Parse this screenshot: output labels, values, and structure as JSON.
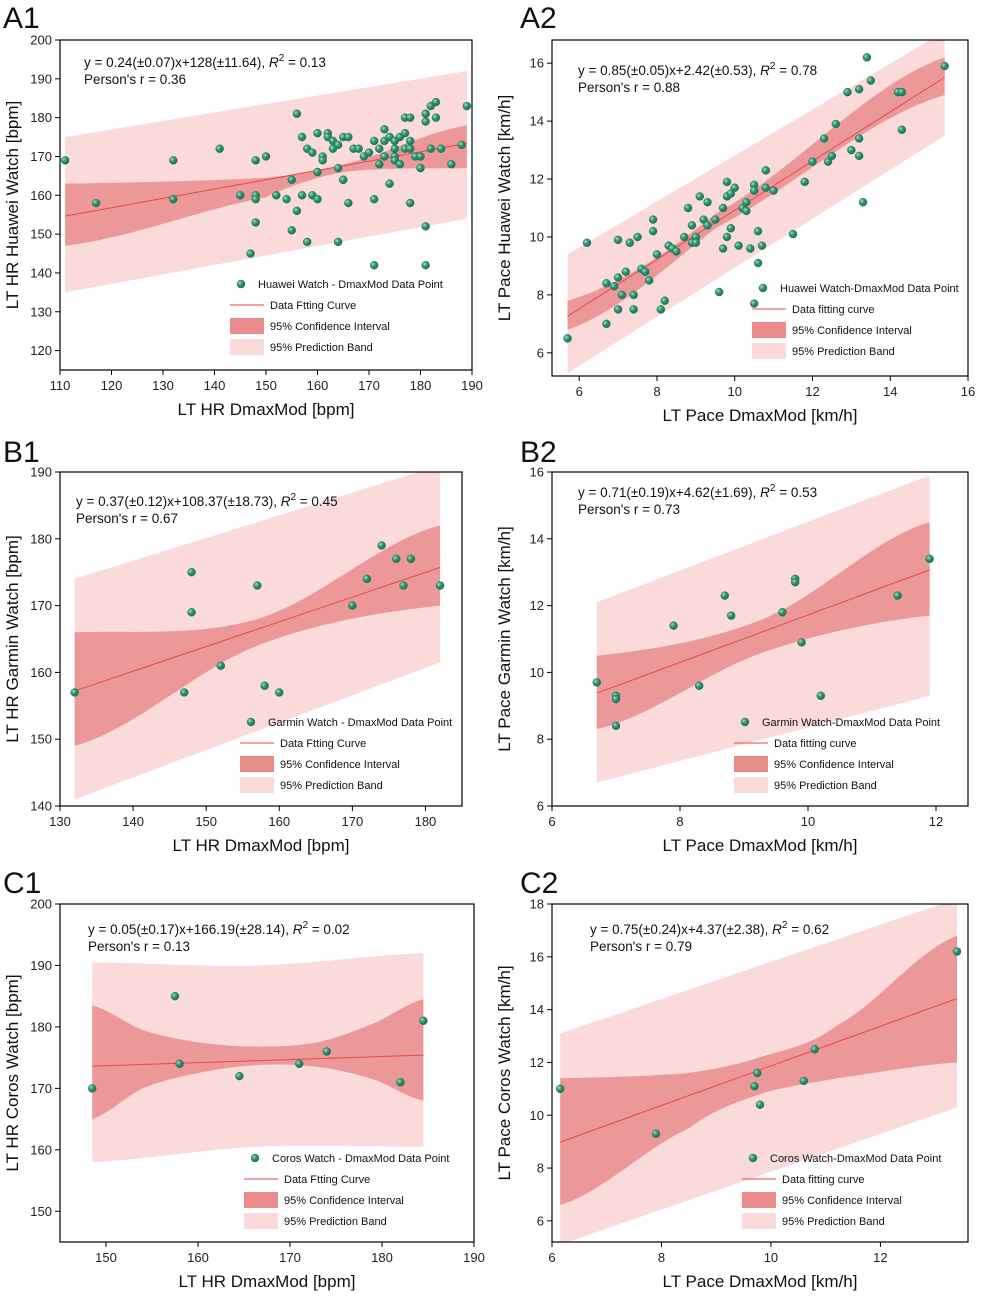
{
  "colors": {
    "point_fill": "#2e9470",
    "point_stroke": "#1d6e52",
    "fit_line": "#e8474a",
    "confidence": "#ea8c8c",
    "prediction": "#fbdada",
    "axis": "#000000"
  },
  "chart_data": [
    {
      "id": "A1",
      "type": "scatter",
      "panel_label": "A1",
      "xlabel": "LT HR DmaxMod [bpm]",
      "ylabel": "LT HR Huawei Watch [bpm]",
      "xlim": [
        110,
        190
      ],
      "ylim": [
        115,
        200
      ],
      "xticks": [
        110,
        120,
        130,
        140,
        150,
        160,
        170,
        180,
        190
      ],
      "yticks": [
        120,
        130,
        140,
        150,
        160,
        170,
        180,
        190,
        200
      ],
      "equation": "y = 0.24(±0.07)x+128(±11.64),",
      "r2": "= 0.13",
      "pearson": "Person's r = 0.36",
      "fit": {
        "slope": 0.24,
        "intercept": 128,
        "x_range": [
          111,
          189
        ]
      },
      "ci": {
        "x": [
          111,
          150,
          165,
          189
        ],
        "lower": [
          147,
          159.5,
          166,
          167
        ],
        "upper": [
          163,
          164.5,
          168,
          178
        ]
      },
      "pi": {
        "x": [
          111,
          189
        ],
        "lower": [
          135,
          154
        ],
        "upper": [
          175,
          192
        ]
      },
      "legend": {
        "points": "Huawei Watch - DmaxMod Data Point",
        "fit": "Data Ftting Curve",
        "ci": "95% Confidence Interval",
        "pi": "95% Prediction Band"
      },
      "points": [
        [
          111,
          169
        ],
        [
          117,
          158
        ],
        [
          132,
          169
        ],
        [
          132,
          159
        ],
        [
          141,
          172
        ],
        [
          145,
          160
        ],
        [
          147,
          145
        ],
        [
          148,
          160
        ],
        [
          148,
          159
        ],
        [
          148,
          153
        ],
        [
          148,
          169
        ],
        [
          150,
          170
        ],
        [
          152,
          160
        ],
        [
          154,
          159
        ],
        [
          155,
          164
        ],
        [
          155,
          151
        ],
        [
          156,
          156
        ],
        [
          156,
          181
        ],
        [
          157,
          160
        ],
        [
          157,
          175
        ],
        [
          158,
          172
        ],
        [
          158,
          148
        ],
        [
          159,
          171
        ],
        [
          159,
          160
        ],
        [
          160,
          176
        ],
        [
          160,
          166
        ],
        [
          160,
          159
        ],
        [
          161,
          170
        ],
        [
          161,
          169
        ],
        [
          162,
          176
        ],
        [
          162,
          175
        ],
        [
          163,
          174
        ],
        [
          163,
          172
        ],
        [
          164,
          148
        ],
        [
          164,
          167
        ],
        [
          164,
          173
        ],
        [
          165,
          164
        ],
        [
          165,
          175
        ],
        [
          165,
          164
        ],
        [
          166,
          158
        ],
        [
          166,
          175
        ],
        [
          167,
          172
        ],
        [
          168,
          172
        ],
        [
          169,
          170
        ],
        [
          170,
          171
        ],
        [
          171,
          159
        ],
        [
          171,
          174
        ],
        [
          171,
          142
        ],
        [
          172,
          168
        ],
        [
          172,
          172
        ],
        [
          173,
          170
        ],
        [
          173,
          177
        ],
        [
          173,
          174
        ],
        [
          174,
          175
        ],
        [
          174,
          163
        ],
        [
          174,
          175
        ],
        [
          175,
          174
        ],
        [
          175,
          170
        ],
        [
          175,
          169
        ],
        [
          175,
          172
        ],
        [
          176,
          175
        ],
        [
          176,
          168
        ],
        [
          177,
          180
        ],
        [
          177,
          176
        ],
        [
          177,
          172
        ],
        [
          178,
          172
        ],
        [
          178,
          174
        ],
        [
          178,
          180
        ],
        [
          178,
          158
        ],
        [
          179,
          170
        ],
        [
          180,
          170
        ],
        [
          180,
          167
        ],
        [
          181,
          181
        ],
        [
          181,
          179
        ],
        [
          181,
          152
        ],
        [
          181,
          142
        ],
        [
          182,
          172
        ],
        [
          182,
          183
        ],
        [
          183,
          180
        ],
        [
          183,
          184
        ],
        [
          184,
          172
        ],
        [
          186,
          168
        ],
        [
          188,
          173
        ],
        [
          189,
          183
        ]
      ]
    },
    {
      "id": "A2",
      "type": "scatter",
      "panel_label": "A2",
      "xlabel": "LT Pace DmaxMod [km/h]",
      "ylabel": "LT Pace Huawei Watch [km/h]",
      "xlim": [
        5.3,
        16
      ],
      "ylim": [
        5.2,
        16.8
      ],
      "xticks": [
        6,
        8,
        10,
        12,
        14,
        16
      ],
      "yticks": [
        6,
        8,
        10,
        12,
        14,
        16
      ],
      "equation": "y = 0.85(±0.05)x+2.42(±0.53),",
      "r2": "= 0.78",
      "pearson": "Person's r = 0.88",
      "fit": {
        "slope": 0.85,
        "intercept": 2.42,
        "x_range": [
          5.7,
          15.4
        ]
      },
      "ci": {
        "x": [
          5.7,
          9.5,
          15.4
        ],
        "lower": [
          6.8,
          10.3,
          14.9
        ],
        "upper": [
          7.8,
          10.8,
          16.2
        ]
      },
      "pi": {
        "x": [
          5.7,
          15.4
        ],
        "lower": [
          5.3,
          13.5
        ],
        "upper": [
          9.4,
          17.1
        ]
      },
      "legend": {
        "points": "Huawei Watch-DmaxMod Data Point",
        "fit": "Data fitting curve",
        "ci": "95% Confidence Interval",
        "pi": "95% Prediction Band"
      },
      "points": [
        [
          5.7,
          6.5
        ],
        [
          6.2,
          9.8
        ],
        [
          6.7,
          7.0
        ],
        [
          6.7,
          8.4
        ],
        [
          6.9,
          8.3
        ],
        [
          7.0,
          8.6
        ],
        [
          7.0,
          9.9
        ],
        [
          7.0,
          7.5
        ],
        [
          7.1,
          8.0
        ],
        [
          7.2,
          8.8
        ],
        [
          7.3,
          9.8
        ],
        [
          7.4,
          7.5
        ],
        [
          7.4,
          8.0
        ],
        [
          7.5,
          10.0
        ],
        [
          7.6,
          8.9
        ],
        [
          7.7,
          8.8
        ],
        [
          7.8,
          8.5
        ],
        [
          7.9,
          10.6
        ],
        [
          7.9,
          10.2
        ],
        [
          8.0,
          9.4
        ],
        [
          8.1,
          7.5
        ],
        [
          8.2,
          7.8
        ],
        [
          8.3,
          9.7
        ],
        [
          8.4,
          9.6
        ],
        [
          8.5,
          9.5
        ],
        [
          8.7,
          10.0
        ],
        [
          8.8,
          11.0
        ],
        [
          8.9,
          9.8
        ],
        [
          8.9,
          10.4
        ],
        [
          9.0,
          10.0
        ],
        [
          9.0,
          9.8
        ],
        [
          9.1,
          11.4
        ],
        [
          9.2,
          10.6
        ],
        [
          9.3,
          10.4
        ],
        [
          9.3,
          11.2
        ],
        [
          9.5,
          10.6
        ],
        [
          9.6,
          8.1
        ],
        [
          9.7,
          11.0
        ],
        [
          9.7,
          9.6
        ],
        [
          9.8,
          11.9
        ],
        [
          9.8,
          11.4
        ],
        [
          9.8,
          10.0
        ],
        [
          9.9,
          11.5
        ],
        [
          9.9,
          10.3
        ],
        [
          10.0,
          11.7
        ],
        [
          10.1,
          9.7
        ],
        [
          10.2,
          11.0
        ],
        [
          10.3,
          11.2
        ],
        [
          10.3,
          10.9
        ],
        [
          10.4,
          9.6
        ],
        [
          10.5,
          7.7
        ],
        [
          10.5,
          11.8
        ],
        [
          10.5,
          11.6
        ],
        [
          10.6,
          9.1
        ],
        [
          10.6,
          10.2
        ],
        [
          10.7,
          9.7
        ],
        [
          10.8,
          12.3
        ],
        [
          10.8,
          11.7
        ],
        [
          11.0,
          11.6
        ],
        [
          11.5,
          10.1
        ],
        [
          11.8,
          11.9
        ],
        [
          12.0,
          12.6
        ],
        [
          12.3,
          13.4
        ],
        [
          12.4,
          12.6
        ],
        [
          12.5,
          12.8
        ],
        [
          12.6,
          13.9
        ],
        [
          12.9,
          15.0
        ],
        [
          13.0,
          13.0
        ],
        [
          13.2,
          15.1
        ],
        [
          13.2,
          13.4
        ],
        [
          13.2,
          12.8
        ],
        [
          13.3,
          11.2
        ],
        [
          13.4,
          16.2
        ],
        [
          13.5,
          15.4
        ],
        [
          14.2,
          15.0
        ],
        [
          14.3,
          15.0
        ],
        [
          14.3,
          13.7
        ],
        [
          15.4,
          15.9
        ]
      ]
    },
    {
      "id": "B1",
      "type": "scatter",
      "panel_label": "B1",
      "xlabel": "LT HR DmaxMod [bpm]",
      "ylabel": "LT HR Garmin Watch [bpm]",
      "xlim": [
        130,
        185
      ],
      "ylim": [
        140,
        190
      ],
      "xticks": [
        130,
        140,
        150,
        160,
        170,
        180
      ],
      "yticks": [
        140,
        150,
        160,
        170,
        180,
        190
      ],
      "equation": "y = 0.37(±0.12)x+108.37(±18.73),",
      "r2": "= 0.45",
      "pearson": "Person's r = 0.67",
      "fit": {
        "slope": 0.37,
        "intercept": 108.37,
        "x_range": [
          132,
          182
        ]
      },
      "ci": {
        "x": [
          132,
          157,
          182
        ],
        "lower": [
          149,
          164,
          170
        ],
        "upper": [
          166,
          168,
          182
        ]
      },
      "pi": {
        "x": [
          132,
          182
        ],
        "lower": [
          141,
          161.5
        ],
        "upper": [
          174,
          191
        ]
      },
      "legend": {
        "points": "Garmin Watch - DmaxMod Data Point",
        "fit": "Data Ftting Curve",
        "ci": "95% Confidence Interval",
        "pi": "95% Prediction Band"
      },
      "points": [
        [
          132,
          157
        ],
        [
          147,
          157
        ],
        [
          148,
          175
        ],
        [
          148,
          169
        ],
        [
          152,
          161
        ],
        [
          157,
          173
        ],
        [
          158,
          158
        ],
        [
          160,
          157
        ],
        [
          170,
          170
        ],
        [
          172,
          174
        ],
        [
          174,
          179
        ],
        [
          176,
          177
        ],
        [
          177,
          173
        ],
        [
          178,
          177
        ],
        [
          182,
          173
        ]
      ]
    },
    {
      "id": "B2",
      "type": "scatter",
      "panel_label": "B2",
      "xlabel": "LT Pace DmaxMod [km/h]",
      "ylabel": "LT Pace Garmin Watch [km/h]",
      "xlim": [
        6,
        12.5
      ],
      "ylim": [
        6,
        16
      ],
      "xticks": [
        6,
        8,
        10,
        12
      ],
      "yticks": [
        6,
        8,
        10,
        12,
        14,
        16
      ],
      "equation": "y = 0.71(±0.19)x+4.62(±1.69),",
      "r2": "= 0.53",
      "pearson": "Person's r = 0.73",
      "fit": {
        "slope": 0.71,
        "intercept": 4.62,
        "x_range": [
          6.7,
          11.9
        ]
      },
      "ci": {
        "x": [
          6.7,
          9.3,
          11.9
        ],
        "lower": [
          8.3,
          10.6,
          11.7
        ],
        "upper": [
          10.5,
          11.6,
          14.5
        ]
      },
      "pi": {
        "x": [
          6.7,
          11.9
        ],
        "lower": [
          6.7,
          9.3
        ],
        "upper": [
          12.1,
          15.9
        ]
      },
      "legend": {
        "points": "Garmin Watch-DmaxMod Data Point",
        "fit": "Data fitting curve",
        "ci": "95% Confidence Interval",
        "pi": "95% Prediction Band"
      },
      "points": [
        [
          6.7,
          9.7
        ],
        [
          7.0,
          9.3
        ],
        [
          7.0,
          9.2
        ],
        [
          7.0,
          8.4
        ],
        [
          7.9,
          11.4
        ],
        [
          8.3,
          9.6
        ],
        [
          8.7,
          12.3
        ],
        [
          8.8,
          11.7
        ],
        [
          9.6,
          11.8
        ],
        [
          9.8,
          12.8
        ],
        [
          9.8,
          12.7
        ],
        [
          9.9,
          10.9
        ],
        [
          10.2,
          9.3
        ],
        [
          11.4,
          12.3
        ],
        [
          11.9,
          13.4
        ]
      ]
    },
    {
      "id": "C1",
      "type": "scatter",
      "panel_label": "C1",
      "xlabel": "LT HR DmaxMod [bpm]",
      "ylabel": "LT HR Coros Watch [bpm]",
      "xlim": [
        145,
        190
      ],
      "ylim": [
        145,
        200
      ],
      "xticks": [
        150,
        160,
        170,
        180,
        190
      ],
      "yticks": [
        150,
        160,
        170,
        180,
        190,
        200
      ],
      "equation": "y = 0.05(±0.17)x+166.19(±28.14),",
      "r2": "= 0.02",
      "pearson": "Person's r = 0.13",
      "fit": {
        "slope": 0.05,
        "intercept": 166.19,
        "x_range": [
          148.5,
          184.5
        ]
      },
      "ci": {
        "x": [
          148.5,
          154,
          160,
          166.5,
          173,
          179,
          184.5
        ],
        "lower": [
          165,
          170,
          172.5,
          173.8,
          173.5,
          171.5,
          168
        ],
        "upper": [
          183.5,
          179.5,
          177.5,
          176.8,
          177.5,
          180.5,
          184.5
        ]
      },
      "pi": {
        "x": [
          148.5,
          166.5,
          184.5
        ],
        "lower": [
          158,
          160.5,
          160.5
        ],
        "upper": [
          190.5,
          190,
          192
        ]
      },
      "legend": {
        "points": "Coros Watch - DmaxMod Data Point",
        "fit": "Data Ftting Curve",
        "ci": "95% Confidence Interval",
        "pi": "95% Prediction Band"
      },
      "points": [
        [
          148.5,
          170
        ],
        [
          157.5,
          185
        ],
        [
          158,
          174
        ],
        [
          164.5,
          172
        ],
        [
          171,
          174
        ],
        [
          174,
          176
        ],
        [
          182,
          171
        ],
        [
          184.5,
          181
        ]
      ]
    },
    {
      "id": "C2",
      "type": "scatter",
      "panel_label": "C2",
      "xlabel": "LT Pace DmaxMod [km/h]",
      "ylabel": "LT Pace Coros Watch [km/h]",
      "xlim": [
        6,
        13.6
      ],
      "ylim": [
        5.2,
        18
      ],
      "xticks": [
        6,
        8,
        10,
        12
      ],
      "yticks": [
        6,
        8,
        10,
        12,
        14,
        16,
        18
      ],
      "equation": "y = 0.75(±0.24)x+4.37(±2.38),",
      "r2": "= 0.62",
      "pearson": "Person's r = 0.79",
      "fit": {
        "slope": 0.75,
        "intercept": 4.37,
        "x_range": [
          6.15,
          13.4
        ]
      },
      "ci": {
        "x": [
          6.15,
          8.5,
          9.8,
          11.2,
          13.4
        ],
        "lower": [
          6.6,
          9.5,
          10.8,
          11.4,
          12.0
        ],
        "upper": [
          11.4,
          11.6,
          12.2,
          13.4,
          16.8
        ]
      },
      "pi": {
        "x": [
          6.15,
          13.4
        ],
        "lower": [
          5.1,
          10.3
        ],
        "upper": [
          13.1,
          18.2
        ]
      },
      "legend": {
        "points": "Coros Watch-DmaxMod Data Point",
        "fit": "Data fitting curve",
        "ci": "95% Confidence Interval",
        "pi": "95% Prediction Band"
      },
      "points": [
        [
          6.15,
          11.0
        ],
        [
          7.9,
          9.3
        ],
        [
          9.7,
          11.1
        ],
        [
          9.75,
          11.6
        ],
        [
          9.8,
          10.4
        ],
        [
          10.6,
          11.3
        ],
        [
          10.8,
          12.5
        ],
        [
          13.4,
          16.2
        ]
      ]
    }
  ]
}
